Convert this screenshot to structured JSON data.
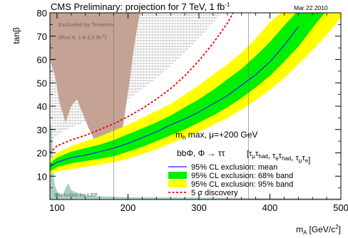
{
  "chart_data": {
    "type": "area",
    "title": "CMS Preliminary: projection for 7 TeV, 1 fb",
    "title_superscript": "-1",
    "date": "Mar 22 2010",
    "xlabel": "m",
    "xlabel_sub": "A",
    "xlabel_unit": "[GeV/c",
    "xlabel_unit_sup": "2",
    "xlabel_unit_close": "]",
    "ylabel": "tanβ",
    "xlim": [
      90,
      500
    ],
    "ylim": [
      0,
      80
    ],
    "x_ticks": [
      {
        "value": 100,
        "label": "100"
      },
      {
        "value": 200,
        "label": "200"
      },
      {
        "value": 300,
        "label": "300"
      },
      {
        "value": 400,
        "label": "400"
      },
      {
        "value": 500,
        "label": "500"
      }
    ],
    "y_ticks": [
      {
        "value": 10,
        "label": "10"
      },
      {
        "value": 20,
        "label": "20"
      },
      {
        "value": 30,
        "label": "30"
      },
      {
        "value": 40,
        "label": "40"
      },
      {
        "value": 50,
        "label": "50"
      },
      {
        "value": 60,
        "label": "60"
      },
      {
        "value": 70,
        "label": "70"
      },
      {
        "value": 80,
        "label": "80"
      }
    ],
    "scenario_label": "m",
    "scenario_label_sub": "h",
    "scenario_label_rest": " max, μ=+200 GeV",
    "process_label": "bbΦ, Φ → ττ",
    "channels_label": "[τ",
    "channels": [
      {
        "a": "μ",
        "b": "had"
      },
      {
        "a": "e",
        "b": "had"
      },
      {
        "a": "μ",
        "b": "e"
      }
    ],
    "tevatron_label_line1": "Excluded by Tevatron",
    "tevatron_label_line2": "(Run II, 1.8-2.2 fb",
    "tevatron_label_line2_sup": "-1",
    "tevatron_label_line2_close": ")",
    "lep_label": "Excluded by LEP",
    "legend_position": "bottom-right",
    "colors": {
      "band95": "#ffff00",
      "band68": "#00ee00",
      "mean": "#1a1aff",
      "discovery": "#ee0000",
      "tevatron": "#c4a394",
      "lep": "#a8d0c4",
      "hatch": "#9a9a9a"
    },
    "series": [
      {
        "name": "95% CL exclusion: mean",
        "style": "line",
        "x": [
          90,
          100,
          120,
          140,
          160,
          180,
          200,
          220,
          240,
          260,
          280,
          300,
          320,
          340,
          360,
          380,
          400,
          420,
          440
        ],
        "y": [
          14,
          16,
          18,
          19,
          20.5,
          22,
          24,
          26.5,
          29,
          32,
          34.5,
          37.5,
          41,
          44.5,
          49,
          53.5,
          59,
          66,
          74
        ]
      },
      {
        "name": "95% CL exclusion: 68% band",
        "style": "band",
        "x": [
          90,
          100,
          120,
          140,
          160,
          180,
          200,
          220,
          240,
          260,
          280,
          300,
          320,
          340,
          360,
          380,
          400,
          420,
          440,
          460,
          480
        ],
        "lower": [
          12,
          14,
          15.5,
          16.5,
          17.5,
          18.5,
          20.5,
          22.5,
          25,
          27.5,
          30,
          33,
          36,
          39.5,
          43.5,
          48,
          53,
          59,
          65.5,
          73.5,
          81
        ],
        "upper": [
          15.5,
          18,
          20.5,
          22,
          23.5,
          25.5,
          28,
          30.5,
          33,
          36,
          39.5,
          43,
          47,
          51.5,
          56,
          61.5,
          67.5,
          74.5,
          81,
          81,
          81
        ]
      },
      {
        "name": "95% CL exclusion: 95% band",
        "style": "band",
        "x": [
          90,
          100,
          120,
          140,
          160,
          180,
          200,
          220,
          240,
          260,
          280,
          300,
          320,
          340,
          360,
          380,
          400,
          420,
          440,
          460,
          480,
          500
        ],
        "lower": [
          11,
          12,
          13,
          14,
          15,
          16,
          17.5,
          19.5,
          21.5,
          24,
          26.5,
          29,
          32,
          35,
          38.5,
          42.5,
          47,
          52,
          58,
          64,
          70.5,
          78
        ],
        "upper": [
          17,
          20,
          23,
          25,
          27,
          29.5,
          32,
          35,
          38,
          41,
          45,
          49,
          53.5,
          58,
          63,
          69,
          76,
          81,
          81,
          81,
          81,
          81
        ]
      },
      {
        "name": "5 σ discovery",
        "style": "dashed",
        "x": [
          90,
          100,
          120,
          140,
          160,
          180,
          200,
          220,
          240,
          260,
          280,
          300,
          320,
          340,
          350
        ],
        "y": [
          20,
          23,
          25.5,
          27.5,
          30,
          32.5,
          35.5,
          39,
          43,
          47.5,
          53,
          59.5,
          67,
          75.5,
          81
        ]
      }
    ],
    "tevatron_region": {
      "x": [
        90,
        90,
        97,
        104,
        112,
        120,
        128,
        136,
        144,
        152,
        160,
        168,
        176,
        184,
        190,
        194,
        198,
        203,
        207,
        211,
        215,
        218,
        218,
        90
      ],
      "y": [
        81,
        60,
        53,
        41,
        33,
        40,
        43,
        37,
        31,
        26,
        23,
        21.5,
        21.5,
        23,
        27,
        33,
        42,
        52,
        62,
        70,
        77,
        81,
        81,
        81
      ]
    },
    "lep_region": {
      "x": [
        90,
        92,
        94,
        95,
        96,
        97,
        100,
        104,
        108,
        112,
        116,
        120,
        130,
        150,
        200,
        300,
        400,
        500,
        500,
        90
      ],
      "y": [
        32,
        32,
        22,
        12,
        8,
        6,
        3.5,
        2.5,
        1.5,
        5,
        7,
        4,
        2.5,
        1.5,
        1,
        0.8,
        0.6,
        0.5,
        0,
        0
      ]
    },
    "hatched_region": {
      "x": [
        90,
        98,
        110,
        130,
        150,
        170,
        190,
        210,
        230,
        250,
        270,
        290,
        310,
        330,
        345,
        350,
        350,
        90
      ],
      "y": [
        25,
        27,
        29.5,
        32,
        34.5,
        37.5,
        41,
        45,
        49.5,
        54.5,
        60,
        66,
        72.5,
        79,
        81,
        81,
        81,
        81
      ]
    },
    "vertical_lines": [
      180,
      370
    ]
  }
}
